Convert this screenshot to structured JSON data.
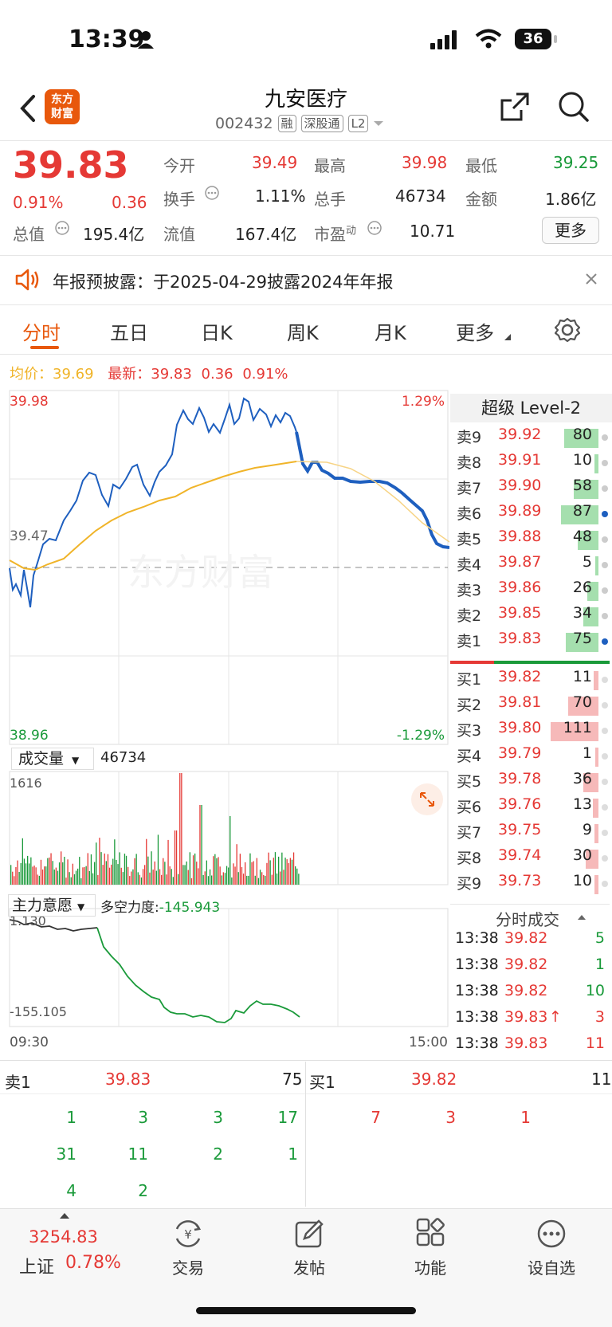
{
  "status": {
    "time": "13:39",
    "battery": "36"
  },
  "header": {
    "brand_line1": "东方",
    "brand_line2": "财富",
    "title": "九安医疗",
    "code": "002432",
    "tags": [
      "融",
      "深股通",
      "L2"
    ]
  },
  "quote": {
    "price": "39.83",
    "change_pct": "0.91%",
    "change": "0.36",
    "open_label": "今开",
    "open": "39.49",
    "high_label": "最高",
    "high": "39.98",
    "low_label": "最低",
    "low": "39.25",
    "turnover_label": "换手",
    "turnover": "1.11%",
    "volume_label": "总手",
    "volume": "46734",
    "amount_label": "金额",
    "amount": "1.86亿",
    "mktcap_label": "总值",
    "mktcap": "195.4亿",
    "float_label": "流值",
    "float": "167.4亿",
    "pe_label": "市盈",
    "pe_sup": "动",
    "pe": "10.71",
    "more_label": "更多"
  },
  "notice": {
    "text": "年报预披露：于2025-04-29披露2024年年报"
  },
  "tabs": [
    "分时",
    "五日",
    "日K",
    "周K",
    "月K",
    "更多"
  ],
  "intraday": {
    "avg_label": "均价：",
    "avg": "39.69",
    "latest_label": "最新：",
    "latest": "39.83",
    "latest_chg": "0.36",
    "latest_pct": "0.91%",
    "y_top": "39.98",
    "y_mid": "39.47",
    "y_bot": "38.96",
    "pct_top": "1.29%",
    "pct_bot": "-1.29%",
    "watermark": "东方财富",
    "volume_label": "成交量",
    "volume_value": "46734",
    "volume_max": "1616",
    "indicator_label": "主力意愿",
    "indicator_desc_label": "多空力度:",
    "indicator_desc_value": "-145.943",
    "ind_top": "1.130",
    "ind_bot": "-155.105",
    "time_start": "09:30",
    "time_end": "15:00"
  },
  "orderbook": {
    "title": "超级 Level-2",
    "asks": [
      {
        "label": "卖9",
        "price": "39.92",
        "vol": "80",
        "bar": 0.72,
        "dot": "#ccc"
      },
      {
        "label": "卖8",
        "price": "39.91",
        "vol": "10",
        "bar": 0.09,
        "dot": "#ccc"
      },
      {
        "label": "卖7",
        "price": "39.90",
        "vol": "58",
        "bar": 0.52,
        "dot": "#ccc"
      },
      {
        "label": "卖6",
        "price": "39.89",
        "vol": "87",
        "bar": 0.78,
        "dot": "#1e5fbf"
      },
      {
        "label": "卖5",
        "price": "39.88",
        "vol": "48",
        "bar": 0.43,
        "dot": "#ccc"
      },
      {
        "label": "卖4",
        "price": "39.87",
        "vol": "5",
        "bar": 0.05,
        "dot": "#ccc"
      },
      {
        "label": "卖3",
        "price": "39.86",
        "vol": "26",
        "bar": 0.23,
        "dot": "#ccc"
      },
      {
        "label": "卖2",
        "price": "39.85",
        "vol": "34",
        "bar": 0.31,
        "dot": "#ccc"
      },
      {
        "label": "卖1",
        "price": "39.83",
        "vol": "75",
        "bar": 0.68,
        "dot": "#1e5fbf"
      }
    ],
    "bids": [
      {
        "label": "买1",
        "price": "39.82",
        "vol": "11",
        "bar": 0.1
      },
      {
        "label": "买2",
        "price": "39.81",
        "vol": "70",
        "bar": 0.63
      },
      {
        "label": "买3",
        "price": "39.80",
        "vol": "111",
        "bar": 1.0
      },
      {
        "label": "买4",
        "price": "39.79",
        "vol": "1",
        "bar": 0.02
      },
      {
        "label": "买5",
        "price": "39.78",
        "vol": "36",
        "bar": 0.32
      },
      {
        "label": "买6",
        "price": "39.76",
        "vol": "13",
        "bar": 0.12
      },
      {
        "label": "买7",
        "price": "39.75",
        "vol": "9",
        "bar": 0.08
      },
      {
        "label": "买8",
        "price": "39.74",
        "vol": "30",
        "bar": 0.27
      },
      {
        "label": "买9",
        "price": "39.73",
        "vol": "10",
        "bar": 0.09
      }
    ],
    "ticks_title": "分时成交",
    "ticks": [
      {
        "time": "13:38",
        "price": "39.82",
        "vol": "5",
        "arrow": "",
        "color": "green"
      },
      {
        "time": "13:38",
        "price": "39.82",
        "vol": "1",
        "arrow": "",
        "color": "green"
      },
      {
        "time": "13:38",
        "price": "39.82",
        "vol": "10",
        "arrow": "",
        "color": "green"
      },
      {
        "time": "13:38",
        "price": "39.83",
        "vol": "3",
        "arrow": "↑",
        "color": "red"
      },
      {
        "time": "13:38",
        "price": "39.83",
        "vol": "11",
        "arrow": "",
        "color": "red"
      }
    ]
  },
  "queue": {
    "sell_label": "卖1",
    "sell_price": "39.83",
    "sell_vol": "75",
    "buy_label": "买1",
    "buy_price": "39.82",
    "buy_vol": "11",
    "sell_rows": [
      [
        "1",
        "3",
        "3",
        "17"
      ],
      [
        "31",
        "11",
        "2",
        "1"
      ],
      [
        "4",
        "2",
        "",
        ""
      ]
    ],
    "buy_rows": [
      [
        "7",
        "3",
        "1"
      ]
    ]
  },
  "bottom_nav": {
    "index_value": "3254.83",
    "index_name": "上证",
    "index_pct": "0.78%",
    "items": [
      "交易",
      "发帖",
      "功能",
      "设自选"
    ]
  },
  "colors": {
    "red": "#e53935",
    "green": "#1a9a3a",
    "accent": "#e8580c",
    "blue_line": "#1e5fbf",
    "avg_line": "#f0b429"
  }
}
